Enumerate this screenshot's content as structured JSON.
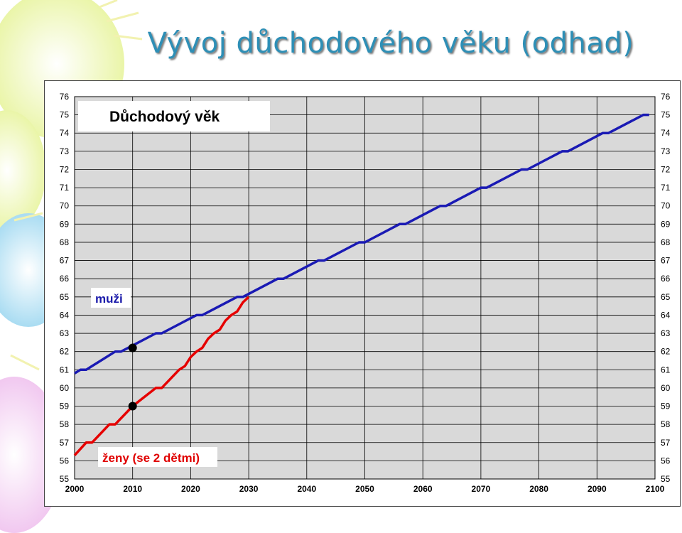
{
  "slide": {
    "title": "Vývoj důchodového věku (odhad)"
  },
  "colors": {
    "title": "#2e8fb6",
    "plot_bg": "#d9d9d9",
    "men": "#1a1ab4",
    "women": "#e60000",
    "marker": "#000000"
  },
  "chart_data": {
    "type": "line",
    "title": "Důchodový věk",
    "xlabel": "",
    "ylabel": "",
    "xlim": [
      2000,
      2100
    ],
    "ylim": [
      55,
      76
    ],
    "x_ticks": [
      2000,
      2010,
      2020,
      2030,
      2040,
      2050,
      2060,
      2070,
      2080,
      2090,
      2100
    ],
    "y_ticks": [
      55,
      56,
      57,
      58,
      59,
      60,
      61,
      62,
      63,
      64,
      65,
      66,
      67,
      68,
      69,
      70,
      71,
      72,
      73,
      74,
      75,
      76
    ],
    "y_axis_right": true,
    "grid": true,
    "series": [
      {
        "name": "muži",
        "color": "#1a1ab4",
        "points": [
          [
            2000,
            60.8
          ],
          [
            2001,
            61.0
          ],
          [
            2002,
            61.0
          ],
          [
            2007,
            62.0
          ],
          [
            2008,
            62.0
          ],
          [
            2014,
            63.0
          ],
          [
            2015,
            63.0
          ],
          [
            2021,
            64.0
          ],
          [
            2022,
            64.0
          ],
          [
            2028,
            65.0
          ],
          [
            2029,
            65.0
          ],
          [
            2035,
            66.0
          ],
          [
            2036,
            66.0
          ],
          [
            2042,
            67.0
          ],
          [
            2043,
            67.0
          ],
          [
            2049,
            68.0
          ],
          [
            2050,
            68.0
          ],
          [
            2056,
            69.0
          ],
          [
            2057,
            69.0
          ],
          [
            2063,
            70.0
          ],
          [
            2064,
            70.0
          ],
          [
            2070,
            71.0
          ],
          [
            2071,
            71.0
          ],
          [
            2077,
            72.0
          ],
          [
            2078,
            72.0
          ],
          [
            2084,
            73.0
          ],
          [
            2085,
            73.0
          ],
          [
            2091,
            74.0
          ],
          [
            2092,
            74.0
          ],
          [
            2098,
            75.0
          ],
          [
            2099,
            75.0
          ]
        ]
      },
      {
        "name": "ženy (se 2 dětmi)",
        "color": "#e60000",
        "points": [
          [
            2000,
            56.3
          ],
          [
            2002,
            57.0
          ],
          [
            2003,
            57.0
          ],
          [
            2006,
            58.0
          ],
          [
            2007,
            58.0
          ],
          [
            2010,
            59.0
          ],
          [
            2014,
            60.0
          ],
          [
            2015,
            60.0
          ],
          [
            2018,
            61.0
          ],
          [
            2019,
            61.2
          ],
          [
            2020,
            61.7
          ],
          [
            2021,
            62.0
          ],
          [
            2022,
            62.2
          ],
          [
            2023,
            62.7
          ],
          [
            2024,
            63.0
          ],
          [
            2025,
            63.2
          ],
          [
            2026,
            63.7
          ],
          [
            2027,
            64.0
          ],
          [
            2028,
            64.2
          ],
          [
            2029,
            64.7
          ],
          [
            2030,
            65.0
          ]
        ]
      }
    ],
    "markers": [
      {
        "x": 2010,
        "y": 62.2
      },
      {
        "x": 2010,
        "y": 59.0
      }
    ],
    "annotations": [
      {
        "text": "muži",
        "series": "muži"
      },
      {
        "text": "ženy (se 2 dětmi)",
        "series": "ženy (se 2 dětmi)"
      }
    ]
  }
}
